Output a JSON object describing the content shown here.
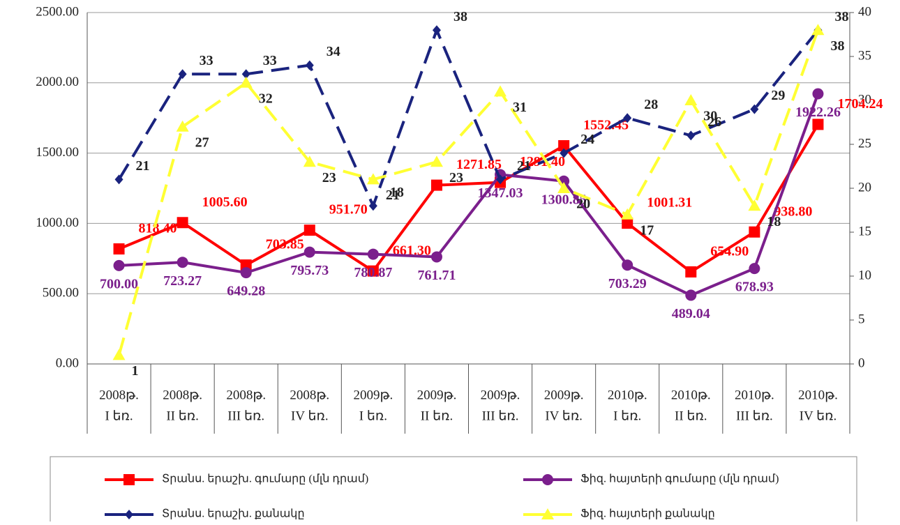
{
  "chart_data": {
    "type": "line",
    "categories": [
      [
        "2008թ.",
        "I եռ."
      ],
      [
        "2008թ.",
        "II եռ."
      ],
      [
        "2008թ.",
        "III եռ."
      ],
      [
        "2008թ.",
        "IV եռ."
      ],
      [
        "2009թ.",
        "I եռ."
      ],
      [
        "2009թ.",
        "II եռ."
      ],
      [
        "2009թ.",
        "III եռ."
      ],
      [
        "2009թ.",
        "IV եռ."
      ],
      [
        "2010թ.",
        "I եռ."
      ],
      [
        "2010թ.",
        "II եռ."
      ],
      [
        "2010թ.",
        "III եռ."
      ],
      [
        "2010թ.",
        "IV եռ."
      ]
    ],
    "series": [
      {
        "name": "Տրանս. երաշխ. գումարը (մլն դրամ)",
        "color": "#ff0000",
        "marker": "square",
        "axis": "y",
        "values": [
          818.4,
          1005.6,
          703.85,
          951.7,
          661.3,
          1271.85,
          1291.4,
          1552.45,
          1001.31,
          654.9,
          938.8,
          1704.24
        ],
        "value_labels": [
          "818.40",
          "1005.60",
          "703.85",
          "951.70",
          "661.30",
          "1271.85",
          "1291.40",
          "1552.45",
          "1001.31",
          "654.90",
          "938.80",
          "1704.24"
        ]
      },
      {
        "name": "Ֆիզ. հայտերի գումարը (մլն դրամ)",
        "color": "#7b1f8c",
        "marker": "circle",
        "axis": "y",
        "values": [
          700,
          723.27,
          649.28,
          795.73,
          780.87,
          761.71,
          1347.03,
          1300.85,
          703.29,
          489.04,
          678.93,
          1922.26
        ],
        "value_labels": [
          "700.00",
          "723.27",
          "649.28",
          "795.73",
          "780.87",
          "761.71",
          "1347.03",
          "1300.85",
          "703.29",
          "489.04",
          "678.93",
          "1922.26"
        ]
      },
      {
        "name": "Տրանս. երաշխ. քանակը",
        "color": "#1a237e",
        "marker": "diamond",
        "axis": "y2",
        "dash": true,
        "values": [
          21,
          33,
          33,
          34,
          18,
          38,
          21,
          24,
          28,
          26,
          29,
          38
        ]
      },
      {
        "name": "Ֆիզ. հայտերի քանակը",
        "color": "#ffff33",
        "marker": "triangle",
        "axis": "y2",
        "dash": true,
        "values": [
          1,
          27,
          32,
          23,
          21,
          23,
          31,
          20,
          17,
          30,
          18,
          38
        ]
      }
    ],
    "ylim": [
      0,
      2500
    ],
    "yticks": [
      {
        "value": 0,
        "label": "0.00"
      },
      {
        "value": 500,
        "label": "500.00"
      },
      {
        "value": 1000,
        "label": "1000.00"
      },
      {
        "value": 1500,
        "label": "1500.00"
      },
      {
        "value": 2000,
        "label": "2000.00"
      },
      {
        "value": 2500,
        "label": "2500.00"
      }
    ],
    "y2lim": [
      0,
      40
    ],
    "y2ticks": [
      0,
      5,
      10,
      15,
      20,
      25,
      30,
      35,
      40
    ],
    "grid": true,
    "legend": "bottom"
  }
}
